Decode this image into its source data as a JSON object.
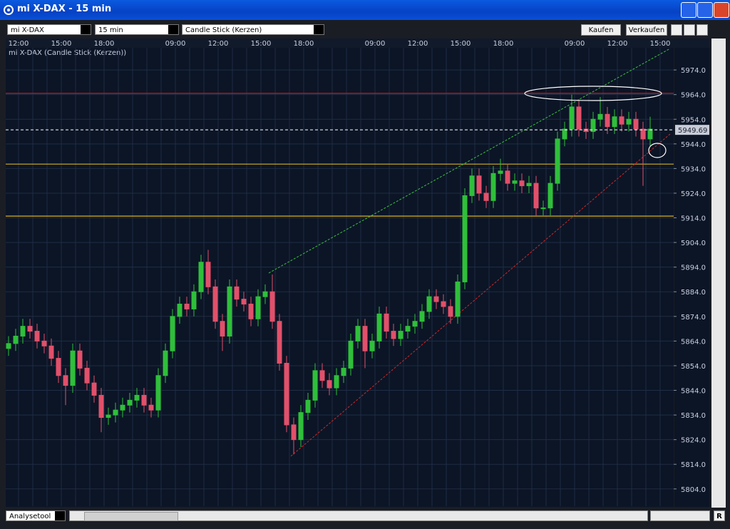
{
  "window": {
    "title": "mi X-DAX - 15 min"
  },
  "toolbar": {
    "instrument": "mi X-DAX",
    "interval": "15 min",
    "chart_style": "Candle Stick (Kerzen)",
    "buy": "Kaufen",
    "sell": "Verkaufen"
  },
  "footer": {
    "tool": "Analysetool",
    "reset": "R"
  },
  "chart_data": {
    "type": "candlestick",
    "title": "mi X-DAX (Candle Stick (Kerzen))",
    "time_labels": [
      "12:00",
      "15:00",
      "18:00",
      "09:00",
      "12:00",
      "15:00",
      "18:00",
      "09:00",
      "12:00",
      "15:00",
      "18:00",
      "09:00",
      "12:00",
      "15:00"
    ],
    "up_color": "#2fbf3a",
    "down_color": "#e2506a",
    "open": [
      5861,
      5863,
      5866,
      5870,
      5868,
      5864,
      5862,
      5857,
      5850,
      5846,
      5860,
      5853,
      5847,
      5842,
      5833,
      5834,
      5836,
      5838,
      5840,
      5842,
      5838,
      5836,
      5850,
      5860,
      5874,
      5879,
      5877,
      5884,
      5896,
      5886,
      5872,
      5866,
      5886,
      5881,
      5879,
      5873,
      5882,
      5884,
      5872,
      5855,
      5830,
      5824,
      5835,
      5840,
      5852,
      5848,
      5845,
      5850,
      5853,
      5864,
      5870,
      5860,
      5864,
      5875,
      5868,
      5865,
      5868,
      5870,
      5872,
      5876,
      5882,
      5880,
      5878,
      5874,
      5888,
      5923,
      5931,
      5924,
      5921,
      5932,
      5933,
      5928,
      5929,
      5927,
      5928,
      5918,
      5918,
      5928,
      5946,
      5950,
      5959,
      5950,
      5949,
      5954,
      5956,
      5951,
      5955,
      5952,
      5954,
      5950,
      5946
    ],
    "high": [
      5866,
      5869,
      5873,
      5873,
      5871,
      5867,
      5865,
      5860,
      5853,
      5863,
      5863,
      5856,
      5850,
      5845,
      5837,
      5839,
      5841,
      5843,
      5845,
      5845,
      5841,
      5853,
      5863,
      5877,
      5882,
      5882,
      5887,
      5899,
      5901,
      5889,
      5875,
      5889,
      5889,
      5884,
      5882,
      5885,
      5887,
      5891,
      5875,
      5858,
      5833,
      5838,
      5843,
      5855,
      5855,
      5851,
      5853,
      5856,
      5867,
      5873,
      5873,
      5867,
      5878,
      5878,
      5871,
      5871,
      5873,
      5875,
      5879,
      5885,
      5885,
      5883,
      5881,
      5891,
      5926,
      5934,
      5934,
      5927,
      5935,
      5938,
      5936,
      5932,
      5932,
      5931,
      5931,
      5921,
      5931,
      5949,
      5953,
      5964,
      5962,
      5953,
      5957,
      5963,
      5959,
      5958,
      5958,
      5957,
      5957,
      5953,
      5955
    ],
    "low": [
      5858,
      5860,
      5863,
      5865,
      5861,
      5859,
      5854,
      5847,
      5838,
      5843,
      5850,
      5844,
      5839,
      5827,
      5830,
      5831,
      5833,
      5835,
      5837,
      5835,
      5833,
      5833,
      5847,
      5857,
      5871,
      5874,
      5874,
      5881,
      5883,
      5869,
      5860,
      5863,
      5878,
      5876,
      5870,
      5870,
      5879,
      5869,
      5852,
      5827,
      5818,
      5821,
      5832,
      5837,
      5845,
      5842,
      5842,
      5847,
      5850,
      5861,
      5853,
      5857,
      5861,
      5865,
      5862,
      5862,
      5865,
      5867,
      5869,
      5873,
      5877,
      5875,
      5871,
      5871,
      5885,
      5920,
      5921,
      5918,
      5918,
      5929,
      5925,
      5925,
      5924,
      5924,
      5915,
      5915,
      5915,
      5925,
      5943,
      5947,
      5947,
      5946,
      5946,
      5951,
      5948,
      5948,
      5949,
      5949,
      5947,
      5927,
      5943
    ],
    "close": [
      5863,
      5866,
      5870,
      5868,
      5864,
      5862,
      5857,
      5850,
      5846,
      5860,
      5853,
      5847,
      5842,
      5833,
      5834,
      5836,
      5838,
      5840,
      5842,
      5838,
      5836,
      5850,
      5860,
      5874,
      5879,
      5877,
      5884,
      5896,
      5886,
      5872,
      5866,
      5886,
      5881,
      5879,
      5873,
      5882,
      5884,
      5872,
      5855,
      5830,
      5824,
      5835,
      5840,
      5852,
      5848,
      5845,
      5850,
      5853,
      5864,
      5870,
      5860,
      5864,
      5875,
      5868,
      5865,
      5868,
      5870,
      5872,
      5876,
      5882,
      5880,
      5878,
      5874,
      5888,
      5923,
      5931,
      5924,
      5921,
      5932,
      5933,
      5928,
      5929,
      5927,
      5928,
      5918,
      5918,
      5928,
      5946,
      5950,
      5959,
      5950,
      5949,
      5954,
      5956,
      5951,
      5955,
      5952,
      5954,
      5950,
      5946,
      5950
    ],
    "last_price": 5949.69,
    "levels": [
      {
        "value": 5964.5,
        "color": "#d02020"
      },
      {
        "value": 5935.8,
        "color": "#d8b020"
      },
      {
        "value": 5914.7,
        "color": "#d8b020"
      }
    ],
    "trendlines": [
      {
        "values": [
          5891.6,
          5982.7
        ],
        "color": "#40c040"
      },
      {
        "values": [
          5817.3,
          5948
        ],
        "color": "#d02828"
      }
    ],
    "ylim": [
      5797,
      5983
    ],
    "yticks": [
      {
        "value": 5804,
        "label": "5804.0"
      },
      {
        "value": 5814,
        "label": "5814.0"
      },
      {
        "value": 5824,
        "label": "5824.0"
      },
      {
        "value": 5834,
        "label": "5834.0"
      },
      {
        "value": 5844,
        "label": "5844.0"
      },
      {
        "value": 5854,
        "label": "5854.0"
      },
      {
        "value": 5864,
        "label": "5864.0"
      },
      {
        "value": 5874,
        "label": "5874.0"
      },
      {
        "value": 5884,
        "label": "5884.0"
      },
      {
        "value": 5894,
        "label": "5894.0"
      },
      {
        "value": 5904,
        "label": "5904.0"
      },
      {
        "value": 5914,
        "label": "5914.0"
      },
      {
        "value": 5924,
        "label": "5924.0"
      },
      {
        "value": 5934,
        "label": "5934.0"
      },
      {
        "value": 5944,
        "label": "5944.0"
      },
      {
        "value": 5954,
        "label": "5954.0"
      },
      {
        "value": 5964,
        "label": "5964.0"
      },
      {
        "value": 5974,
        "label": "5974.0"
      }
    ],
    "grid": true
  }
}
